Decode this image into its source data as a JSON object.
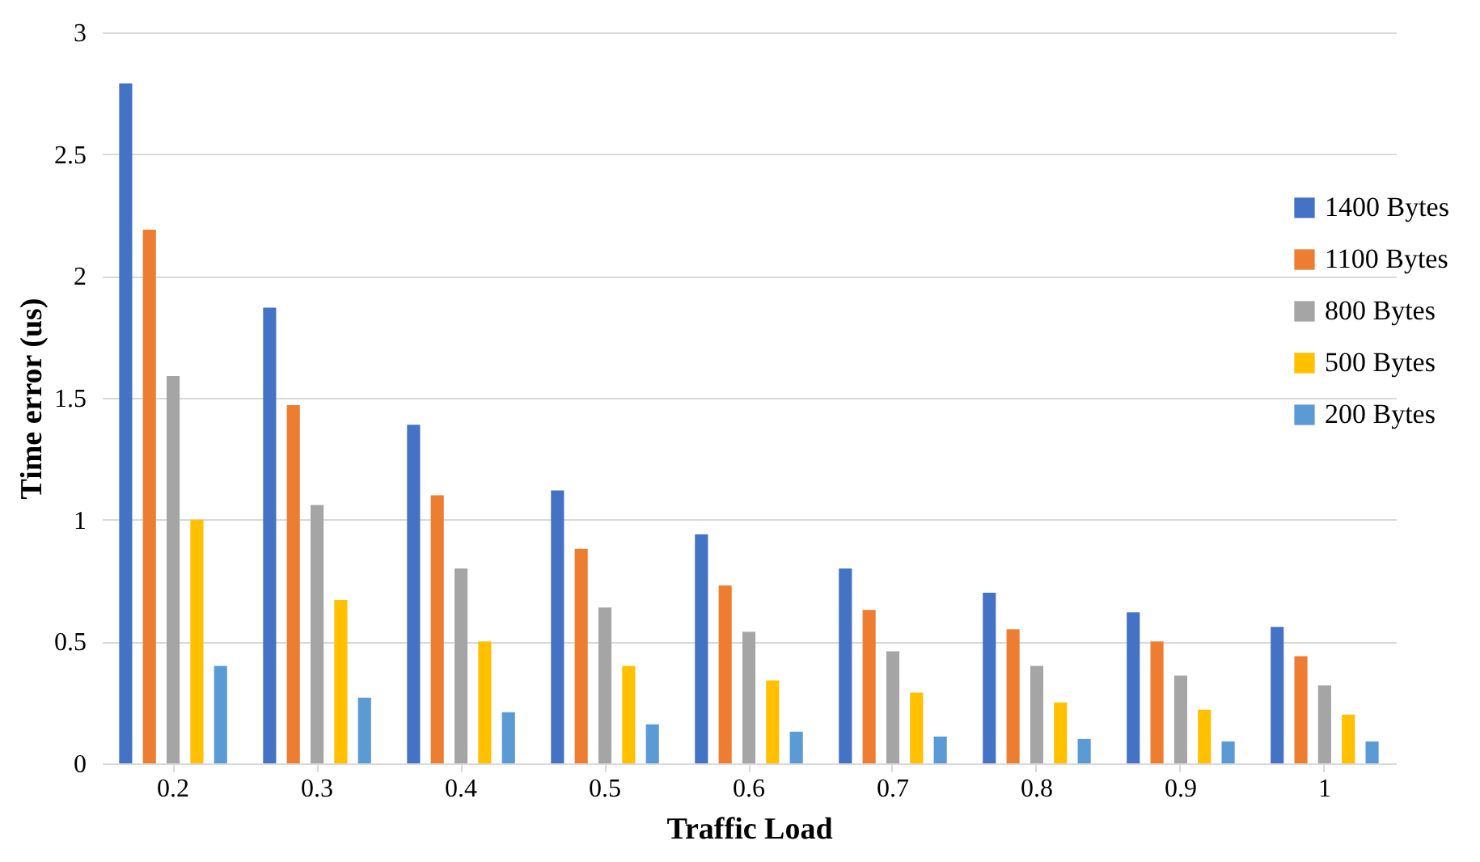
{
  "chart_data": {
    "type": "bar",
    "xlabel": "Traffic Load",
    "ylabel": "Time error (us)",
    "categories": [
      "0.2",
      "0.3",
      "0.4",
      "0.5",
      "0.6",
      "0.7",
      "0.8",
      "0.9",
      "1"
    ],
    "series": [
      {
        "name": "1400 Bytes",
        "color": "#4472c4",
        "values": [
          2.79,
          1.87,
          1.39,
          1.12,
          0.94,
          0.8,
          0.7,
          0.62,
          0.56
        ]
      },
      {
        "name": "1100 Bytes",
        "color": "#ed7d31",
        "values": [
          2.19,
          1.47,
          1.1,
          0.88,
          0.73,
          0.63,
          0.55,
          0.5,
          0.44
        ]
      },
      {
        "name": "800 Bytes",
        "color": "#a5a5a5",
        "values": [
          1.59,
          1.06,
          0.8,
          0.64,
          0.54,
          0.46,
          0.4,
          0.36,
          0.32
        ]
      },
      {
        "name": "500 Bytes",
        "color": "#ffc000",
        "values": [
          1.0,
          0.67,
          0.5,
          0.4,
          0.34,
          0.29,
          0.25,
          0.22,
          0.2
        ]
      },
      {
        "name": "200 Bytes",
        "color": "#5b9bd5",
        "values": [
          0.4,
          0.27,
          0.21,
          0.16,
          0.13,
          0.11,
          0.1,
          0.09,
          0.09
        ]
      }
    ],
    "ylim": [
      0,
      3
    ],
    "yticks": [
      0,
      0.5,
      1,
      1.5,
      2,
      2.5,
      3
    ],
    "grid": "y",
    "legend": "right"
  }
}
